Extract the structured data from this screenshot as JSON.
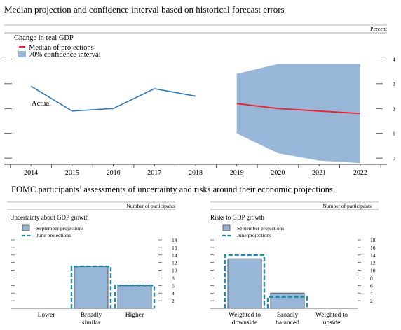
{
  "page": {
    "top_title": "Median projection and confidence interval based on historical forecast errors",
    "bottom_title": "FOMC participants’ assessments of uncertainty and risks around their economic projections"
  },
  "colors": {
    "band": "#97b6d8",
    "median": "#e8252b",
    "actual": "#2f78b8",
    "bar": "#97b6d8",
    "bar_border": "#4a4a4a",
    "june": "#1e8aa8"
  },
  "chart_data": [
    {
      "type": "line",
      "subtitle": "Change in real GDP",
      "unit_label": "Percent",
      "x": [
        2014,
        2015,
        2016,
        2017,
        2018,
        2019,
        2020,
        2021,
        2022
      ],
      "xlim": [
        2013.35,
        2022.65
      ],
      "ylim": [
        -0.25,
        4.35
      ],
      "yticks": [
        0,
        1,
        2,
        3,
        4
      ],
      "legend": [
        "Median of projections",
        "70% confidence interval"
      ],
      "annotation": "Actual",
      "series": [
        {
          "name": "Actual",
          "x": [
            2014,
            2015,
            2016,
            2017,
            2018
          ],
          "values": [
            2.9,
            1.9,
            2.0,
            2.8,
            2.5
          ]
        },
        {
          "name": "Median of projections",
          "x": [
            2019,
            2020,
            2021,
            2022
          ],
          "values": [
            2.2,
            2.0,
            1.9,
            1.8
          ]
        }
      ],
      "band": {
        "name": "70% confidence interval",
        "x": [
          2019,
          2020,
          2021,
          2022
        ],
        "upper": [
          3.4,
          3.8,
          3.8,
          3.8
        ],
        "lower": [
          1.0,
          0.2,
          -0.1,
          -0.2
        ]
      }
    },
    {
      "type": "bar",
      "title": "Uncertainty about GDP growth",
      "unit_label": "Number of participants",
      "categories": [
        "Lower",
        "Broadly similar",
        "Higher"
      ],
      "category_lines": [
        [
          "Lower"
        ],
        [
          "Broadly",
          "similar"
        ],
        [
          "Higher"
        ]
      ],
      "ylim": [
        0,
        18
      ],
      "yticks": [
        2,
        4,
        6,
        8,
        10,
        12,
        14,
        16,
        18
      ],
      "legend": [
        "September projections",
        "June projections"
      ],
      "series": [
        {
          "name": "September projections",
          "values": [
            0,
            11,
            6
          ]
        },
        {
          "name": "June projections",
          "values": [
            0,
            11,
            6
          ]
        }
      ]
    },
    {
      "type": "bar",
      "title": "Risks to GDP growth",
      "unit_label": "Number of participants",
      "categories": [
        "Weighted to downside",
        "Broadly balanced",
        "Weighted to upside"
      ],
      "category_lines": [
        [
          "Weighted to",
          "downside"
        ],
        [
          "Broadly",
          "balanced"
        ],
        [
          "Weighted to",
          "upside"
        ]
      ],
      "ylim": [
        0,
        18
      ],
      "yticks": [
        2,
        4,
        6,
        8,
        10,
        12,
        14,
        16,
        18
      ],
      "legend": [
        "September projections",
        "June projections"
      ],
      "series": [
        {
          "name": "September projections",
          "values": [
            13,
            4,
            0
          ]
        },
        {
          "name": "June projections",
          "values": [
            14,
            3,
            0
          ]
        }
      ]
    }
  ]
}
